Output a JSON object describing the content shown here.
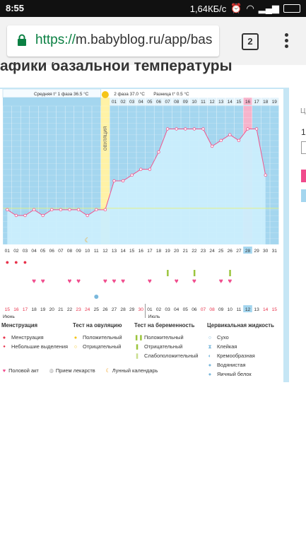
{
  "status_bar": {
    "time": "8:55",
    "net_speed": "1,64КБ/с",
    "battery_icon": "battery-icon"
  },
  "browser": {
    "url_scheme": "https://",
    "url_rest": "m.babyblog.ru/app/bas",
    "tab_count": "2"
  },
  "page": {
    "heading": "афики базальной температуры"
  },
  "chart_header": {
    "phase1_label": "Средняя t° 1 фаза",
    "phase1_value": "36.5 °С",
    "ovulation_label": "ОВУЛЯЦИЯ",
    "phase2_label": "2 фаза",
    "phase2_value": "37.0 °С",
    "diff_label": "Разница t°",
    "diff_value": "0.5 °С"
  },
  "chart_data": {
    "type": "area",
    "x": [
      "01",
      "02",
      "03",
      "04",
      "05",
      "06",
      "07",
      "08",
      "09",
      "10",
      "11",
      "12",
      "13",
      "14",
      "15",
      "16",
      "17",
      "18",
      "19",
      "20",
      "21",
      "22",
      "23",
      "24",
      "25",
      "26",
      "27",
      "28",
      "29",
      "30",
      "31"
    ],
    "y": [
      7,
      6,
      6,
      7,
      6,
      7,
      7,
      7,
      7,
      6,
      7,
      7,
      12,
      12,
      13,
      14,
      14,
      17,
      21,
      21,
      21,
      21,
      21,
      18,
      19,
      20,
      19,
      21,
      21,
      13,
      null
    ],
    "y_unit": "relative level",
    "ovulation_day": "12",
    "highlight_day": "28",
    "cycle_days_phase2": [
      "01",
      "02",
      "03",
      "04",
      "05",
      "06",
      "07",
      "08",
      "09",
      "10",
      "11",
      "12",
      "13",
      "14",
      "15",
      "16",
      "17",
      "18",
      "19"
    ],
    "calendar_dates": [
      "15",
      "16",
      "17",
      "18",
      "19",
      "20",
      "21",
      "22",
      "23",
      "24",
      "25",
      "26",
      "27",
      "28",
      "29",
      "30",
      "01",
      "02",
      "03",
      "04",
      "05",
      "06",
      "07",
      "08",
      "09",
      "10",
      "11",
      "12",
      "13",
      "14",
      "15"
    ],
    "calendar_red": [
      "16",
      "17",
      "23",
      "24",
      "30",
      "07",
      "08",
      "14",
      "15"
    ],
    "month_start_label": "Июнь",
    "month_next_label": "Июль",
    "menstruation_days": [
      "01",
      "02",
      "03"
    ],
    "sex_days": [
      "04",
      "05",
      "08",
      "09",
      "12",
      "13",
      "14",
      "17",
      "20",
      "22",
      "25",
      "26"
    ],
    "preg_test_days": [
      "19",
      "22",
      "26"
    ],
    "moon_day": "10",
    "fluid_day": "11",
    "grid": true
  },
  "legend": {
    "menstruation": {
      "title": "Менструация",
      "items": [
        "Менструация",
        "Небольшие выделения"
      ]
    },
    "ovulation_test": {
      "title": "Тест на овуляцию",
      "items": [
        "Положительный",
        "Отрицательный"
      ]
    },
    "pregnancy_test": {
      "title": "Тест на беременность",
      "items": [
        "Положительный",
        "Отрицательный",
        "Слабоположительный"
      ]
    },
    "cervical_fluid": {
      "title": "Цервикальная жидкость",
      "items": [
        "Сухо",
        "Клейкая",
        "Кремообразная",
        "Водянистая",
        "Яичный белок"
      ]
    },
    "bottom": [
      "Половой акт",
      "Прием лекарств",
      "Лунный календарь"
    ]
  },
  "side_panel": {
    "label": "Ц",
    "value": "1"
  },
  "colors": {
    "sky": "#a4d6ef",
    "fill": "#cbeefc",
    "line": "#f2548c",
    "ovulation": "#fff2a6",
    "highlight": "#f7b3cb",
    "green": "#9bc53d"
  }
}
